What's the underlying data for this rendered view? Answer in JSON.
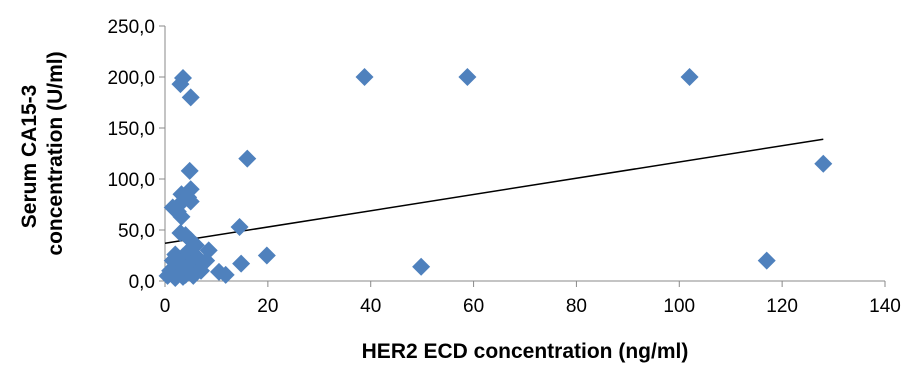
{
  "chart_data": {
    "type": "scatter",
    "xlabel": "HER2 ECD concentration (ng/ml)",
    "ylabel_lines": [
      "Serum CA15-3",
      "concentration (U/ml)"
    ],
    "xlim": [
      0,
      140
    ],
    "ylim": [
      0,
      250
    ],
    "x_ticks": [
      0,
      20,
      40,
      60,
      80,
      100,
      120,
      140
    ],
    "x_tick_labels": [
      "0",
      "20",
      "40",
      "60",
      "80",
      "100",
      "120",
      "140"
    ],
    "y_ticks": [
      0,
      50,
      100,
      150,
      200,
      250
    ],
    "y_tick_labels": [
      "0,0",
      "50,0",
      "100,0",
      "150,0",
      "200,0",
      "250,0"
    ],
    "grid": false,
    "legend": "none",
    "marker": "diamond",
    "marker_color": "#4F81BD",
    "trendline": {
      "type": "linear",
      "x": [
        0,
        128
      ],
      "y": [
        37,
        139
      ],
      "color": "#000000"
    },
    "points": [
      {
        "x": 3.5,
        "y": 199
      },
      {
        "x": 3,
        "y": 193
      },
      {
        "x": 5,
        "y": 180
      },
      {
        "x": 38.8,
        "y": 200
      },
      {
        "x": 58.8,
        "y": 200
      },
      {
        "x": 102,
        "y": 200
      },
      {
        "x": 16,
        "y": 120
      },
      {
        "x": 128,
        "y": 115
      },
      {
        "x": 4.8,
        "y": 108
      },
      {
        "x": 5,
        "y": 90
      },
      {
        "x": 3.2,
        "y": 85
      },
      {
        "x": 4.5,
        "y": 82
      },
      {
        "x": 5,
        "y": 78
      },
      {
        "x": 3,
        "y": 76
      },
      {
        "x": 1.5,
        "y": 72
      },
      {
        "x": 2.5,
        "y": 68
      },
      {
        "x": 3.2,
        "y": 63
      },
      {
        "x": 14.5,
        "y": 53
      },
      {
        "x": 3,
        "y": 47
      },
      {
        "x": 4,
        "y": 45
      },
      {
        "x": 5,
        "y": 40
      },
      {
        "x": 6,
        "y": 35
      },
      {
        "x": 8.5,
        "y": 30
      },
      {
        "x": 4.5,
        "y": 29
      },
      {
        "x": 2,
        "y": 26
      },
      {
        "x": 3.5,
        "y": 24
      },
      {
        "x": 19.8,
        "y": 25
      },
      {
        "x": 6.5,
        "y": 22
      },
      {
        "x": 1.5,
        "y": 20
      },
      {
        "x": 8,
        "y": 20
      },
      {
        "x": 3,
        "y": 18
      },
      {
        "x": 5,
        "y": 16
      },
      {
        "x": 14.8,
        "y": 17
      },
      {
        "x": 2.5,
        "y": 14
      },
      {
        "x": 49.8,
        "y": 14
      },
      {
        "x": 117,
        "y": 20
      },
      {
        "x": 4,
        "y": 12
      },
      {
        "x": 1,
        "y": 10
      },
      {
        "x": 3,
        "y": 9
      },
      {
        "x": 10.5,
        "y": 9
      },
      {
        "x": 6,
        "y": 8
      },
      {
        "x": 2,
        "y": 7
      },
      {
        "x": 11.8,
        "y": 6
      },
      {
        "x": 4,
        "y": 6
      },
      {
        "x": 0.5,
        "y": 5
      },
      {
        "x": 3.5,
        "y": 4
      },
      {
        "x": 5.5,
        "y": 5
      },
      {
        "x": 7,
        "y": 10
      },
      {
        "x": 2,
        "y": 3
      }
    ]
  }
}
